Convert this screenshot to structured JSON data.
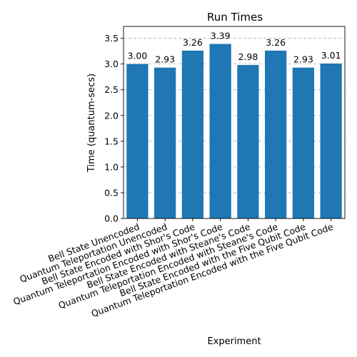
{
  "chart_data": {
    "type": "bar",
    "title": "Run Times",
    "xlabel": "Experiment",
    "ylabel": "Time (quantum-secs)",
    "categories": [
      "Bell State Unencoded",
      "Quantum Teleportation Unencoded",
      "Bell State Encoded with Shor's Code",
      "Quantum Teleportation Encoded with Shor's Code",
      "Bell State Encoded with Steane's Code",
      "Quantum Teleportation Encoded with Steane's Code",
      "Bell State Encoded with the Five Qubit Code",
      "Quantum Teleportation Encoded with the Five Qubit Code"
    ],
    "values": [
      3.0,
      2.93,
      3.26,
      3.39,
      2.98,
      3.26,
      2.93,
      3.01
    ],
    "value_labels": [
      "3.00",
      "2.93",
      "3.26",
      "3.39",
      "2.98",
      "3.26",
      "2.93",
      "3.01"
    ],
    "ylim": [
      0,
      3.73
    ],
    "yticks": [
      "0.0",
      "0.5",
      "1.0",
      "1.5",
      "2.0",
      "2.5",
      "3.0",
      "3.5"
    ],
    "grid": "y-axis dashed",
    "bar_color": "#1f77b4"
  }
}
